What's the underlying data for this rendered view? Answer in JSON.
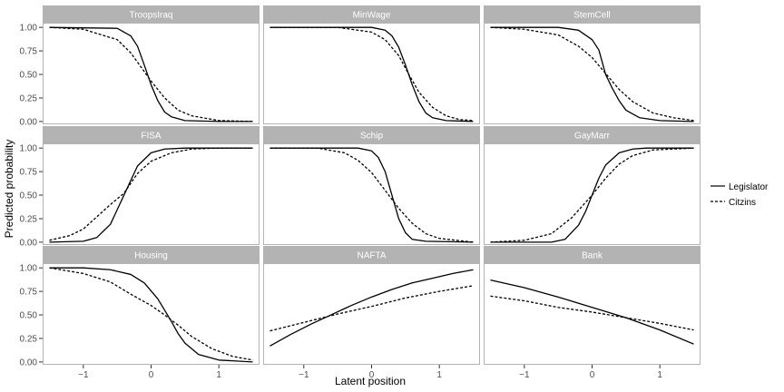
{
  "chart_data": {
    "type": "line",
    "layout": "facet-grid 3x3",
    "xlabel": "Latent position",
    "ylabel": "Predicted probability",
    "xlim": [
      -1.6,
      1.6
    ],
    "ylim": [
      -0.03,
      1.05
    ],
    "x_ticks": [
      -1,
      0,
      1
    ],
    "x_tick_labels": [
      "−1",
      "0",
      "1"
    ],
    "y_ticks": [
      0,
      0.25,
      0.5,
      0.75,
      1
    ],
    "y_tick_labels": [
      "0.00",
      "0.25",
      "0.50",
      "0.75",
      "1.00"
    ],
    "grid": false,
    "x_domain": [
      -1.5,
      1.5
    ],
    "legend": {
      "position": "right",
      "entries": [
        {
          "label": "Legislator",
          "style": "solid"
        },
        {
          "label": "Citzins",
          "style": "dashed"
        }
      ]
    },
    "panels": [
      {
        "title": "TroopsIraq",
        "series": [
          {
            "name": "Legislator",
            "points": [
              [
                -1.5,
                1.0
              ],
              [
                -0.5,
                0.99
              ],
              [
                -0.3,
                0.91
              ],
              [
                -0.2,
                0.8
              ],
              [
                -0.1,
                0.6
              ],
              [
                0.0,
                0.39
              ],
              [
                0.1,
                0.22
              ],
              [
                0.2,
                0.1
              ],
              [
                0.3,
                0.05
              ],
              [
                0.5,
                0.01
              ],
              [
                1.0,
                0.0
              ],
              [
                1.5,
                0.0
              ]
            ]
          },
          {
            "name": "Citzins",
            "points": [
              [
                -1.5,
                1.0
              ],
              [
                -1.0,
                0.98
              ],
              [
                -0.5,
                0.87
              ],
              [
                -0.3,
                0.73
              ],
              [
                -0.1,
                0.53
              ],
              [
                0.0,
                0.43
              ],
              [
                0.2,
                0.25
              ],
              [
                0.4,
                0.12
              ],
              [
                0.6,
                0.06
              ],
              [
                1.0,
                0.01
              ],
              [
                1.5,
                0.0
              ]
            ]
          }
        ]
      },
      {
        "title": "MinWage",
        "series": [
          {
            "name": "Legislator",
            "points": [
              [
                -1.5,
                1.0
              ],
              [
                0.0,
                1.0
              ],
              [
                0.2,
                0.97
              ],
              [
                0.3,
                0.91
              ],
              [
                0.4,
                0.79
              ],
              [
                0.5,
                0.6
              ],
              [
                0.6,
                0.39
              ],
              [
                0.7,
                0.21
              ],
              [
                0.8,
                0.09
              ],
              [
                0.9,
                0.04
              ],
              [
                1.1,
                0.01
              ],
              [
                1.5,
                0.0
              ]
            ]
          },
          {
            "name": "Citzins",
            "points": [
              [
                -1.5,
                1.0
              ],
              [
                -0.5,
                1.0
              ],
              [
                0.0,
                0.95
              ],
              [
                0.2,
                0.87
              ],
              [
                0.4,
                0.7
              ],
              [
                0.55,
                0.5
              ],
              [
                0.7,
                0.31
              ],
              [
                0.9,
                0.15
              ],
              [
                1.1,
                0.06
              ],
              [
                1.3,
                0.02
              ],
              [
                1.5,
                0.01
              ]
            ]
          }
        ]
      },
      {
        "title": "StemCell",
        "series": [
          {
            "name": "Legislator",
            "points": [
              [
                -1.5,
                1.0
              ],
              [
                -0.5,
                1.0
              ],
              [
                -0.2,
                0.97
              ],
              [
                0.0,
                0.87
              ],
              [
                0.1,
                0.76
              ],
              [
                0.2,
                0.5
              ],
              [
                0.3,
                0.35
              ],
              [
                0.4,
                0.22
              ],
              [
                0.5,
                0.12
              ],
              [
                0.7,
                0.04
              ],
              [
                1.0,
                0.01
              ],
              [
                1.5,
                0.0
              ]
            ]
          },
          {
            "name": "Citzins",
            "points": [
              [
                -1.5,
                1.0
              ],
              [
                -1.0,
                0.98
              ],
              [
                -0.5,
                0.92
              ],
              [
                -0.2,
                0.8
              ],
              [
                0.0,
                0.68
              ],
              [
                0.2,
                0.51
              ],
              [
                0.4,
                0.34
              ],
              [
                0.6,
                0.21
              ],
              [
                0.9,
                0.09
              ],
              [
                1.2,
                0.04
              ],
              [
                1.5,
                0.01
              ]
            ]
          }
        ]
      },
      {
        "title": "FISA",
        "series": [
          {
            "name": "Legislator",
            "points": [
              [
                -1.5,
                0.0
              ],
              [
                -1.0,
                0.01
              ],
              [
                -0.8,
                0.05
              ],
              [
                -0.6,
                0.19
              ],
              [
                -0.4,
                0.5
              ],
              [
                -0.2,
                0.81
              ],
              [
                0.0,
                0.95
              ],
              [
                0.2,
                0.99
              ],
              [
                0.5,
                1.0
              ],
              [
                1.5,
                1.0
              ]
            ]
          },
          {
            "name": "Citzins",
            "points": [
              [
                -1.5,
                0.02
              ],
              [
                -1.2,
                0.07
              ],
              [
                -1.0,
                0.14
              ],
              [
                -0.8,
                0.27
              ],
              [
                -0.6,
                0.4
              ],
              [
                -0.4,
                0.52
              ],
              [
                -0.2,
                0.73
              ],
              [
                0.0,
                0.86
              ],
              [
                0.3,
                0.95
              ],
              [
                0.6,
                0.99
              ],
              [
                1.0,
                1.0
              ],
              [
                1.5,
                1.0
              ]
            ]
          }
        ]
      },
      {
        "title": "Schip",
        "series": [
          {
            "name": "Legislator",
            "points": [
              [
                -1.5,
                1.0
              ],
              [
                -0.2,
                1.0
              ],
              [
                0.0,
                0.97
              ],
              [
                0.1,
                0.9
              ],
              [
                0.2,
                0.75
              ],
              [
                0.3,
                0.5
              ],
              [
                0.4,
                0.25
              ],
              [
                0.5,
                0.1
              ],
              [
                0.6,
                0.03
              ],
              [
                0.8,
                0.01
              ],
              [
                1.5,
                0.0
              ]
            ]
          },
          {
            "name": "Citzins",
            "points": [
              [
                -1.5,
                1.0
              ],
              [
                -0.8,
                1.0
              ],
              [
                -0.4,
                0.95
              ],
              [
                -0.2,
                0.87
              ],
              [
                0.0,
                0.74
              ],
              [
                0.2,
                0.55
              ],
              [
                0.4,
                0.36
              ],
              [
                0.6,
                0.2
              ],
              [
                0.8,
                0.09
              ],
              [
                1.0,
                0.04
              ],
              [
                1.5,
                0.0
              ]
            ]
          }
        ]
      },
      {
        "title": "GayMarr",
        "series": [
          {
            "name": "Legislator",
            "points": [
              [
                -1.5,
                0.0
              ],
              [
                -0.6,
                0.0
              ],
              [
                -0.4,
                0.03
              ],
              [
                -0.2,
                0.18
              ],
              [
                -0.1,
                0.32
              ],
              [
                0.0,
                0.5
              ],
              [
                0.1,
                0.68
              ],
              [
                0.2,
                0.82
              ],
              [
                0.4,
                0.95
              ],
              [
                0.6,
                0.99
              ],
              [
                0.8,
                1.0
              ],
              [
                1.5,
                1.0
              ]
            ]
          },
          {
            "name": "Citzins",
            "points": [
              [
                -1.5,
                0.0
              ],
              [
                -1.0,
                0.02
              ],
              [
                -0.6,
                0.09
              ],
              [
                -0.3,
                0.26
              ],
              [
                -0.1,
                0.42
              ],
              [
                0.0,
                0.5
              ],
              [
                0.2,
                0.68
              ],
              [
                0.4,
                0.83
              ],
              [
                0.6,
                0.92
              ],
              [
                0.9,
                0.98
              ],
              [
                1.5,
                1.0
              ]
            ]
          }
        ]
      },
      {
        "title": "Housing",
        "series": [
          {
            "name": "Legislator",
            "points": [
              [
                -1.5,
                1.0
              ],
              [
                -1.0,
                1.0
              ],
              [
                -0.6,
                0.98
              ],
              [
                -0.3,
                0.93
              ],
              [
                -0.1,
                0.84
              ],
              [
                0.1,
                0.67
              ],
              [
                0.2,
                0.55
              ],
              [
                0.3,
                0.43
              ],
              [
                0.4,
                0.3
              ],
              [
                0.5,
                0.2
              ],
              [
                0.7,
                0.08
              ],
              [
                1.0,
                0.02
              ],
              [
                1.5,
                0.0
              ]
            ]
          },
          {
            "name": "Citzins",
            "points": [
              [
                -1.5,
                1.0
              ],
              [
                -1.0,
                0.94
              ],
              [
                -0.6,
                0.85
              ],
              [
                -0.3,
                0.72
              ],
              [
                0.0,
                0.6
              ],
              [
                0.2,
                0.5
              ],
              [
                0.4,
                0.39
              ],
              [
                0.6,
                0.27
              ],
              [
                0.9,
                0.14
              ],
              [
                1.2,
                0.06
              ],
              [
                1.5,
                0.02
              ]
            ]
          }
        ]
      },
      {
        "title": "NAFTA",
        "series": [
          {
            "name": "Legislator",
            "points": [
              [
                -1.5,
                0.17
              ],
              [
                -1.2,
                0.29
              ],
              [
                -0.9,
                0.4
              ],
              [
                -0.6,
                0.5
              ],
              [
                -0.3,
                0.6
              ],
              [
                0.0,
                0.69
              ],
              [
                0.3,
                0.77
              ],
              [
                0.6,
                0.84
              ],
              [
                0.9,
                0.89
              ],
              [
                1.2,
                0.94
              ],
              [
                1.5,
                0.98
              ]
            ]
          },
          {
            "name": "Citzins",
            "points": [
              [
                -1.5,
                0.33
              ],
              [
                -1.0,
                0.42
              ],
              [
                -0.5,
                0.51
              ],
              [
                0.0,
                0.59
              ],
              [
                0.5,
                0.68
              ],
              [
                1.0,
                0.75
              ],
              [
                1.5,
                0.81
              ]
            ]
          }
        ]
      },
      {
        "title": "Bank",
        "series": [
          {
            "name": "Legislator",
            "points": [
              [
                -1.5,
                0.87
              ],
              [
                -1.0,
                0.79
              ],
              [
                -0.5,
                0.69
              ],
              [
                0.0,
                0.58
              ],
              [
                0.5,
                0.47
              ],
              [
                1.0,
                0.34
              ],
              [
                1.5,
                0.19
              ]
            ]
          },
          {
            "name": "Citzins",
            "points": [
              [
                -1.5,
                0.7
              ],
              [
                -1.0,
                0.65
              ],
              [
                -0.5,
                0.58
              ],
              [
                0.0,
                0.53
              ],
              [
                0.5,
                0.47
              ],
              [
                1.0,
                0.41
              ],
              [
                1.5,
                0.34
              ]
            ]
          }
        ]
      }
    ]
  }
}
